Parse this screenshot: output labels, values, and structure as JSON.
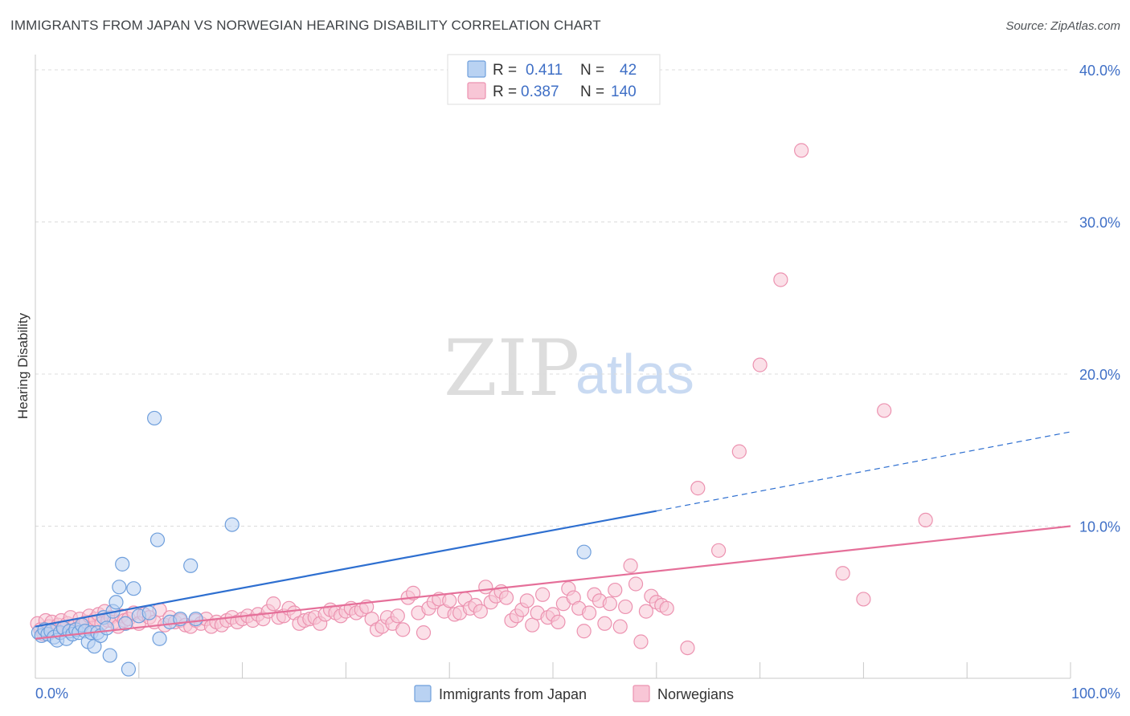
{
  "title": "IMMIGRANTS FROM JAPAN VS NORWEGIAN HEARING DISABILITY CORRELATION CHART",
  "source": "Source: ZipAtlas.com",
  "watermark": {
    "zip": "ZIP",
    "atlas": "atlas"
  },
  "legend": {
    "r_label": "R =",
    "n_label": "N =",
    "rows": [
      {
        "r": "0.411",
        "n": "42"
      },
      {
        "r": "0.387",
        "n": "140"
      }
    ]
  },
  "colors": {
    "japan_fill": "#b9d2f2",
    "japan_stroke": "#6f9fdc",
    "japan_line": "#2e6fd0",
    "norw_fill": "#f8c6d6",
    "norw_stroke": "#ec92b0",
    "norw_line": "#e56f99"
  },
  "chart_data": {
    "type": "scatter",
    "xlabel": "",
    "ylabel": "Hearing Disability",
    "xlim": [
      0,
      100
    ],
    "ylim": [
      0,
      41
    ],
    "x_tick_labels": [
      "0.0%",
      "100.0%"
    ],
    "y_tick_labels": [
      "10.0%",
      "20.0%",
      "30.0%",
      "40.0%"
    ],
    "y_ticks": [
      10,
      20,
      30,
      40
    ],
    "x_minor_ticks": [
      10,
      20,
      30,
      40,
      50,
      60,
      70,
      80,
      90,
      100
    ],
    "series": [
      {
        "name": "Immigrants from Japan",
        "r": 0.411,
        "n": 42,
        "trend": {
          "x0": 0,
          "y0": 3.4,
          "x1": 60,
          "y1": 11.0,
          "x_dash_end": 100,
          "y_dash_end": 16.2
        },
        "points": [
          [
            0.3,
            3.0
          ],
          [
            0.6,
            2.8
          ],
          [
            0.9,
            3.2
          ],
          [
            1.2,
            2.9
          ],
          [
            1.5,
            3.1
          ],
          [
            1.8,
            2.7
          ],
          [
            2.1,
            2.5
          ],
          [
            2.4,
            3.0
          ],
          [
            2.7,
            3.3
          ],
          [
            3.0,
            2.6
          ],
          [
            3.3,
            3.1
          ],
          [
            3.6,
            2.9
          ],
          [
            3.9,
            3.2
          ],
          [
            4.2,
            3.0
          ],
          [
            4.5,
            3.5
          ],
          [
            4.8,
            3.1
          ],
          [
            5.1,
            2.4
          ],
          [
            5.4,
            3.0
          ],
          [
            5.7,
            2.1
          ],
          [
            6.0,
            3.0
          ],
          [
            6.3,
            2.8
          ],
          [
            6.6,
            4.0
          ],
          [
            6.9,
            3.3
          ],
          [
            7.2,
            1.5
          ],
          [
            7.5,
            4.4
          ],
          [
            7.8,
            5.0
          ],
          [
            8.1,
            6.0
          ],
          [
            8.4,
            7.5
          ],
          [
            8.7,
            3.6
          ],
          [
            9.0,
            0.6
          ],
          [
            9.5,
            5.9
          ],
          [
            10.0,
            4.1
          ],
          [
            11.0,
            4.3
          ],
          [
            11.5,
            17.1
          ],
          [
            11.8,
            9.1
          ],
          [
            12.0,
            2.6
          ],
          [
            13.0,
            3.7
          ],
          [
            14.0,
            3.9
          ],
          [
            15.0,
            7.4
          ],
          [
            15.5,
            3.9
          ],
          [
            19.0,
            10.1
          ],
          [
            53.0,
            8.3
          ]
        ]
      },
      {
        "name": "Norwegians",
        "r": 0.387,
        "n": 140,
        "trend": {
          "x0": 0,
          "y0": 2.6,
          "x1": 100,
          "y1": 10.0
        },
        "points": [
          [
            0.2,
            3.6
          ],
          [
            0.5,
            3.2
          ],
          [
            0.8,
            2.9
          ],
          [
            1.0,
            3.8
          ],
          [
            1.3,
            3.4
          ],
          [
            1.6,
            3.7
          ],
          [
            1.9,
            3.1
          ],
          [
            2.2,
            3.5
          ],
          [
            2.5,
            3.8
          ],
          [
            2.8,
            3.3
          ],
          [
            3.1,
            3.6
          ],
          [
            3.4,
            4.0
          ],
          [
            3.7,
            3.4
          ],
          [
            4.0,
            3.2
          ],
          [
            4.3,
            3.9
          ],
          [
            4.6,
            3.5
          ],
          [
            4.9,
            3.7
          ],
          [
            5.2,
            4.1
          ],
          [
            5.5,
            3.3
          ],
          [
            5.8,
            3.9
          ],
          [
            6.1,
            4.2
          ],
          [
            6.4,
            3.6
          ],
          [
            6.7,
            4.4
          ],
          [
            7.0,
            3.8
          ],
          [
            7.3,
            4.0
          ],
          [
            7.6,
            3.7
          ],
          [
            8.0,
            3.4
          ],
          [
            8.3,
            4.1
          ],
          [
            8.6,
            3.8
          ],
          [
            9.0,
            3.9
          ],
          [
            9.5,
            4.3
          ],
          [
            10.0,
            3.6
          ],
          [
            10.5,
            4.2
          ],
          [
            11.0,
            4.0
          ],
          [
            11.5,
            3.7
          ],
          [
            12.0,
            4.5
          ],
          [
            12.5,
            3.5
          ],
          [
            13.0,
            4.0
          ],
          [
            13.5,
            3.7
          ],
          [
            14.0,
            3.8
          ],
          [
            14.5,
            3.5
          ],
          [
            15.0,
            3.4
          ],
          [
            15.5,
            3.8
          ],
          [
            16.0,
            3.6
          ],
          [
            16.5,
            3.9
          ],
          [
            17.0,
            3.4
          ],
          [
            17.5,
            3.7
          ],
          [
            18.0,
            3.5
          ],
          [
            18.5,
            3.8
          ],
          [
            19.0,
            4.0
          ],
          [
            19.5,
            3.7
          ],
          [
            20.0,
            3.9
          ],
          [
            20.5,
            4.1
          ],
          [
            21.0,
            3.8
          ],
          [
            21.5,
            4.2
          ],
          [
            22.0,
            3.9
          ],
          [
            22.5,
            4.4
          ],
          [
            23.0,
            4.9
          ],
          [
            23.5,
            4.0
          ],
          [
            24.0,
            4.1
          ],
          [
            24.5,
            4.6
          ],
          [
            25.0,
            4.3
          ],
          [
            25.5,
            3.6
          ],
          [
            26.0,
            3.8
          ],
          [
            26.5,
            3.9
          ],
          [
            27.0,
            4.0
          ],
          [
            27.5,
            3.6
          ],
          [
            28.0,
            4.2
          ],
          [
            28.5,
            4.5
          ],
          [
            29.0,
            4.3
          ],
          [
            29.5,
            4.1
          ],
          [
            30.0,
            4.4
          ],
          [
            30.5,
            4.6
          ],
          [
            31.0,
            4.3
          ],
          [
            31.5,
            4.5
          ],
          [
            32.0,
            4.7
          ],
          [
            32.5,
            3.9
          ],
          [
            33.0,
            3.2
          ],
          [
            33.5,
            3.4
          ],
          [
            34.0,
            4.0
          ],
          [
            34.5,
            3.6
          ],
          [
            35.0,
            4.1
          ],
          [
            35.5,
            3.2
          ],
          [
            36.0,
            5.3
          ],
          [
            36.5,
            5.6
          ],
          [
            37.0,
            4.3
          ],
          [
            37.5,
            3.0
          ],
          [
            38.0,
            4.6
          ],
          [
            38.5,
            5.0
          ],
          [
            39.0,
            5.2
          ],
          [
            39.5,
            4.4
          ],
          [
            40.0,
            5.1
          ],
          [
            40.5,
            4.2
          ],
          [
            41.0,
            4.3
          ],
          [
            41.5,
            5.2
          ],
          [
            42.0,
            4.6
          ],
          [
            42.5,
            4.8
          ],
          [
            43.0,
            4.4
          ],
          [
            43.5,
            6.0
          ],
          [
            44.0,
            5.0
          ],
          [
            44.5,
            5.4
          ],
          [
            45.0,
            5.7
          ],
          [
            45.5,
            5.3
          ],
          [
            46.0,
            3.8
          ],
          [
            46.5,
            4.1
          ],
          [
            47.0,
            4.5
          ],
          [
            47.5,
            5.1
          ],
          [
            48.0,
            3.5
          ],
          [
            48.5,
            4.3
          ],
          [
            49.0,
            5.5
          ],
          [
            49.5,
            4.0
          ],
          [
            50.0,
            4.2
          ],
          [
            50.5,
            3.7
          ],
          [
            51.0,
            4.9
          ],
          [
            51.5,
            5.9
          ],
          [
            52.0,
            5.3
          ],
          [
            52.5,
            4.6
          ],
          [
            53.0,
            3.1
          ],
          [
            53.5,
            4.3
          ],
          [
            54.0,
            5.5
          ],
          [
            54.5,
            5.1
          ],
          [
            55.0,
            3.6
          ],
          [
            55.5,
            4.9
          ],
          [
            56.0,
            5.8
          ],
          [
            56.5,
            3.4
          ],
          [
            57.0,
            4.7
          ],
          [
            57.5,
            7.4
          ],
          [
            58.0,
            6.2
          ],
          [
            58.5,
            2.4
          ],
          [
            59.0,
            4.4
          ],
          [
            59.5,
            5.4
          ],
          [
            60.0,
            5.0
          ],
          [
            60.5,
            4.8
          ],
          [
            61.0,
            4.6
          ],
          [
            63.0,
            2.0
          ],
          [
            64.0,
            12.5
          ],
          [
            66.0,
            8.4
          ],
          [
            68.0,
            14.9
          ],
          [
            70.0,
            20.6
          ],
          [
            72.0,
            26.2
          ],
          [
            74.0,
            34.7
          ],
          [
            78.0,
            6.9
          ],
          [
            80.0,
            5.2
          ],
          [
            82.0,
            17.6
          ],
          [
            86.0,
            10.4
          ]
        ]
      }
    ]
  }
}
